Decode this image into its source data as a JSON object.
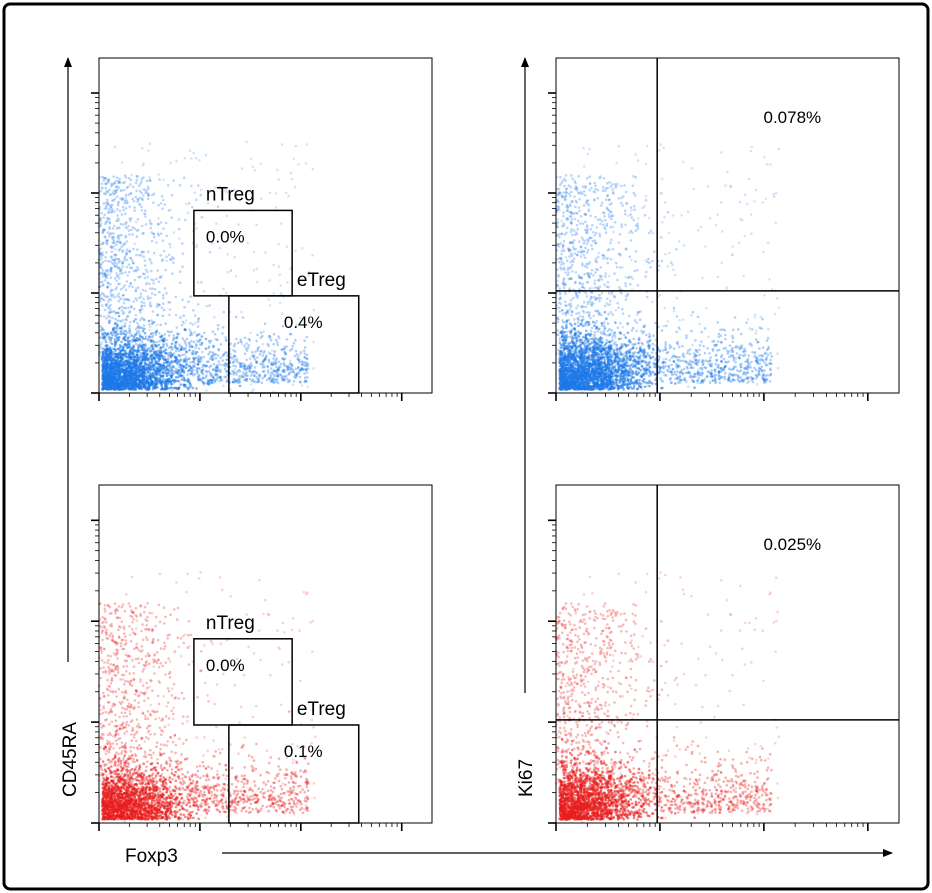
{
  "figure": {
    "axis_labels": {
      "left_y": "CD45RA",
      "right_y": "Ki67",
      "bottom_x": "Foxp3"
    }
  },
  "chart_data": [
    {
      "type": "scatter",
      "panel": "top-left",
      "color": "#1e78e8",
      "gates": [
        {
          "name": "nTreg",
          "value": "0.0%"
        },
        {
          "name": "eTreg",
          "value": "0.4%"
        }
      ]
    },
    {
      "type": "scatter",
      "panel": "top-right",
      "color": "#1e78e8",
      "quadrant_value": "0.078%"
    },
    {
      "type": "scatter",
      "panel": "bottom-left",
      "color": "#e81e1e",
      "gates": [
        {
          "name": "nTreg",
          "value": "0.0%"
        },
        {
          "name": "eTreg",
          "value": "0.1%"
        }
      ]
    },
    {
      "type": "scatter",
      "panel": "bottom-right",
      "color": "#e81e1e",
      "quadrant_value": "0.025%"
    }
  ]
}
